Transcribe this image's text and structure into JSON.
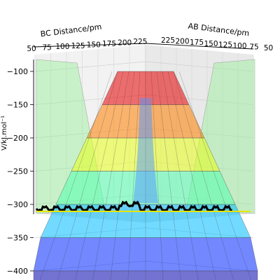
{
  "chart_data": {
    "type": "surface",
    "projection": "3d",
    "x_axis": {
      "label": "BC Distance/pm",
      "ticks": [
        50,
        75,
        100,
        125,
        150,
        175,
        200,
        225
      ],
      "range": [
        50,
        250
      ]
    },
    "y_axis": {
      "label": "AB Distance/pm",
      "ticks": [
        225,
        200,
        175,
        150,
        125,
        100,
        75,
        50
      ],
      "range": [
        50,
        250
      ]
    },
    "z_axis": {
      "label": "V/kJ.mol⁻¹",
      "ticks": [
        -100,
        -150,
        -200,
        -250,
        -300,
        -350,
        -400
      ],
      "range": [
        -430,
        -90
      ]
    },
    "colormap": "jet",
    "surface_alpha": 0.4,
    "grid": true,
    "series": [
      {
        "type": "trajectory",
        "color": "#000000",
        "line_width": 3
      }
    ],
    "levels": [
      -400,
      -350,
      -300,
      -250,
      -200,
      -150,
      -100
    ]
  }
}
